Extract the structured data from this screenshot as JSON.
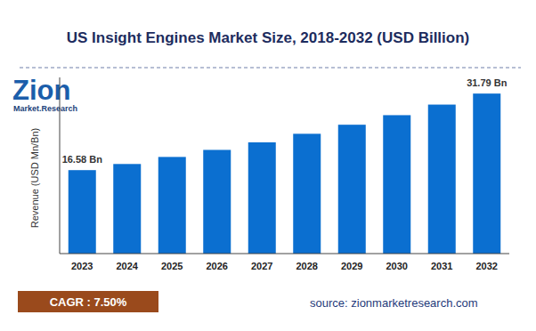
{
  "chart_data": {
    "type": "bar",
    "title": "US Insight Engines Market Size, 2018-2032 (USD Billion)",
    "y_label": "Revenue (USD Mn/Bn)",
    "categories": [
      "2023",
      "2024",
      "2025",
      "2026",
      "2027",
      "2028",
      "2029",
      "2030",
      "2031",
      "2032"
    ],
    "values": [
      16.58,
      17.8,
      19.2,
      20.6,
      22.1,
      23.8,
      25.6,
      27.5,
      29.6,
      31.79
    ],
    "value_labels": [
      "16.58 Bn",
      null,
      null,
      null,
      null,
      null,
      null,
      null,
      null,
      "31.79 Bn"
    ],
    "color": "#0b6fd0",
    "ylim": [
      0,
      35
    ],
    "tick_labels": "x",
    "grid": false,
    "logo": {
      "name": "Zion",
      "subtitle": "Market.Research"
    },
    "annotations": [
      "CAGR : 7.50%",
      "source: zionmarketresearch.com"
    ]
  }
}
